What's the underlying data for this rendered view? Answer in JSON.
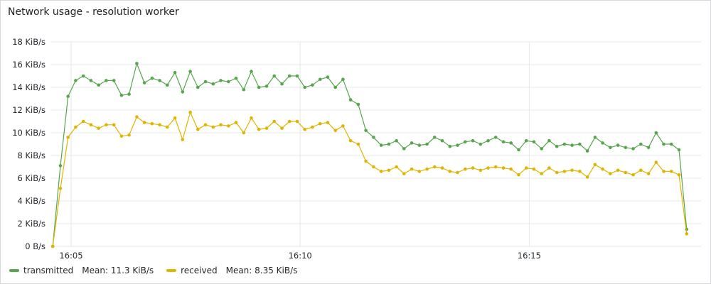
{
  "panel": {
    "title": "Network usage - resolution worker"
  },
  "chart_data": {
    "type": "line",
    "title": "Network usage - resolution worker",
    "xlabel": "",
    "ylabel": "",
    "x_start": "16:04.6",
    "x_step_min": 0.1667,
    "x_ticks": [
      {
        "label": "16:05",
        "value": 5
      },
      {
        "label": "16:10",
        "value": 10
      },
      {
        "label": "16:15",
        "value": 15
      }
    ],
    "xlim": [
      4.55,
      18.75
    ],
    "ylim": [
      0,
      18
    ],
    "y_ticks": [
      {
        "label": "0 B/s",
        "value": 0
      },
      {
        "label": "2 KiB/s",
        "value": 2
      },
      {
        "label": "4 KiB/s",
        "value": 4
      },
      {
        "label": "6 KiB/s",
        "value": 6
      },
      {
        "label": "8 KiB/s",
        "value": 8
      },
      {
        "label": "10 KiB/s",
        "value": 10
      },
      {
        "label": "12 KiB/s",
        "value": 12
      },
      {
        "label": "14 KiB/s",
        "value": 14
      },
      {
        "label": "16 KiB/s",
        "value": 16
      },
      {
        "label": "18 KiB/s",
        "value": 18
      }
    ],
    "grid": true,
    "legend_position": "bottom-left",
    "series": [
      {
        "name": "transmitted",
        "color": "#56a64b",
        "mean_label": "Mean: 11.3 KiB/s",
        "values": [
          0.0,
          7.1,
          13.2,
          14.6,
          15.0,
          14.6,
          14.2,
          14.6,
          14.6,
          13.3,
          13.4,
          16.1,
          14.4,
          14.8,
          14.6,
          14.2,
          15.3,
          13.6,
          15.4,
          14.0,
          14.5,
          14.3,
          14.6,
          14.5,
          14.8,
          13.8,
          15.4,
          14.0,
          14.1,
          15.0,
          14.3,
          15.0,
          15.0,
          14.0,
          14.2,
          14.7,
          14.9,
          14.0,
          14.7,
          12.9,
          12.5,
          10.2,
          9.6,
          8.9,
          9.0,
          9.3,
          8.6,
          9.1,
          8.9,
          9.0,
          9.6,
          9.3,
          8.8,
          8.9,
          9.2,
          9.3,
          9.0,
          9.3,
          9.6,
          9.2,
          9.1,
          8.5,
          9.3,
          9.2,
          8.6,
          9.3,
          8.8,
          9.0,
          8.9,
          9.0,
          8.4,
          9.6,
          9.1,
          8.7,
          8.9,
          8.7,
          8.6,
          9.0,
          8.7,
          10.0,
          9.0,
          9.0,
          8.5,
          1.5
        ]
      },
      {
        "name": "received",
        "color": "#e0b400",
        "mean_label": "Mean: 8.35 KiB/s",
        "values": [
          0.0,
          5.1,
          9.6,
          10.5,
          11.0,
          10.7,
          10.4,
          10.7,
          10.7,
          9.7,
          9.8,
          11.4,
          10.9,
          10.8,
          10.7,
          10.5,
          11.3,
          9.4,
          11.8,
          10.3,
          10.7,
          10.5,
          10.7,
          10.6,
          10.9,
          10.0,
          11.3,
          10.3,
          10.4,
          11.0,
          10.4,
          11.0,
          11.0,
          10.3,
          10.5,
          10.8,
          10.9,
          10.2,
          10.6,
          9.3,
          9.0,
          7.5,
          7.0,
          6.6,
          6.7,
          7.0,
          6.4,
          6.8,
          6.6,
          6.8,
          7.0,
          6.9,
          6.6,
          6.5,
          6.8,
          6.9,
          6.7,
          6.9,
          7.0,
          6.9,
          6.8,
          6.3,
          6.9,
          6.8,
          6.4,
          6.9,
          6.5,
          6.6,
          6.7,
          6.6,
          6.1,
          7.2,
          6.8,
          6.4,
          6.7,
          6.5,
          6.3,
          6.7,
          6.4,
          7.4,
          6.6,
          6.6,
          6.3,
          1.1
        ]
      }
    ]
  }
}
